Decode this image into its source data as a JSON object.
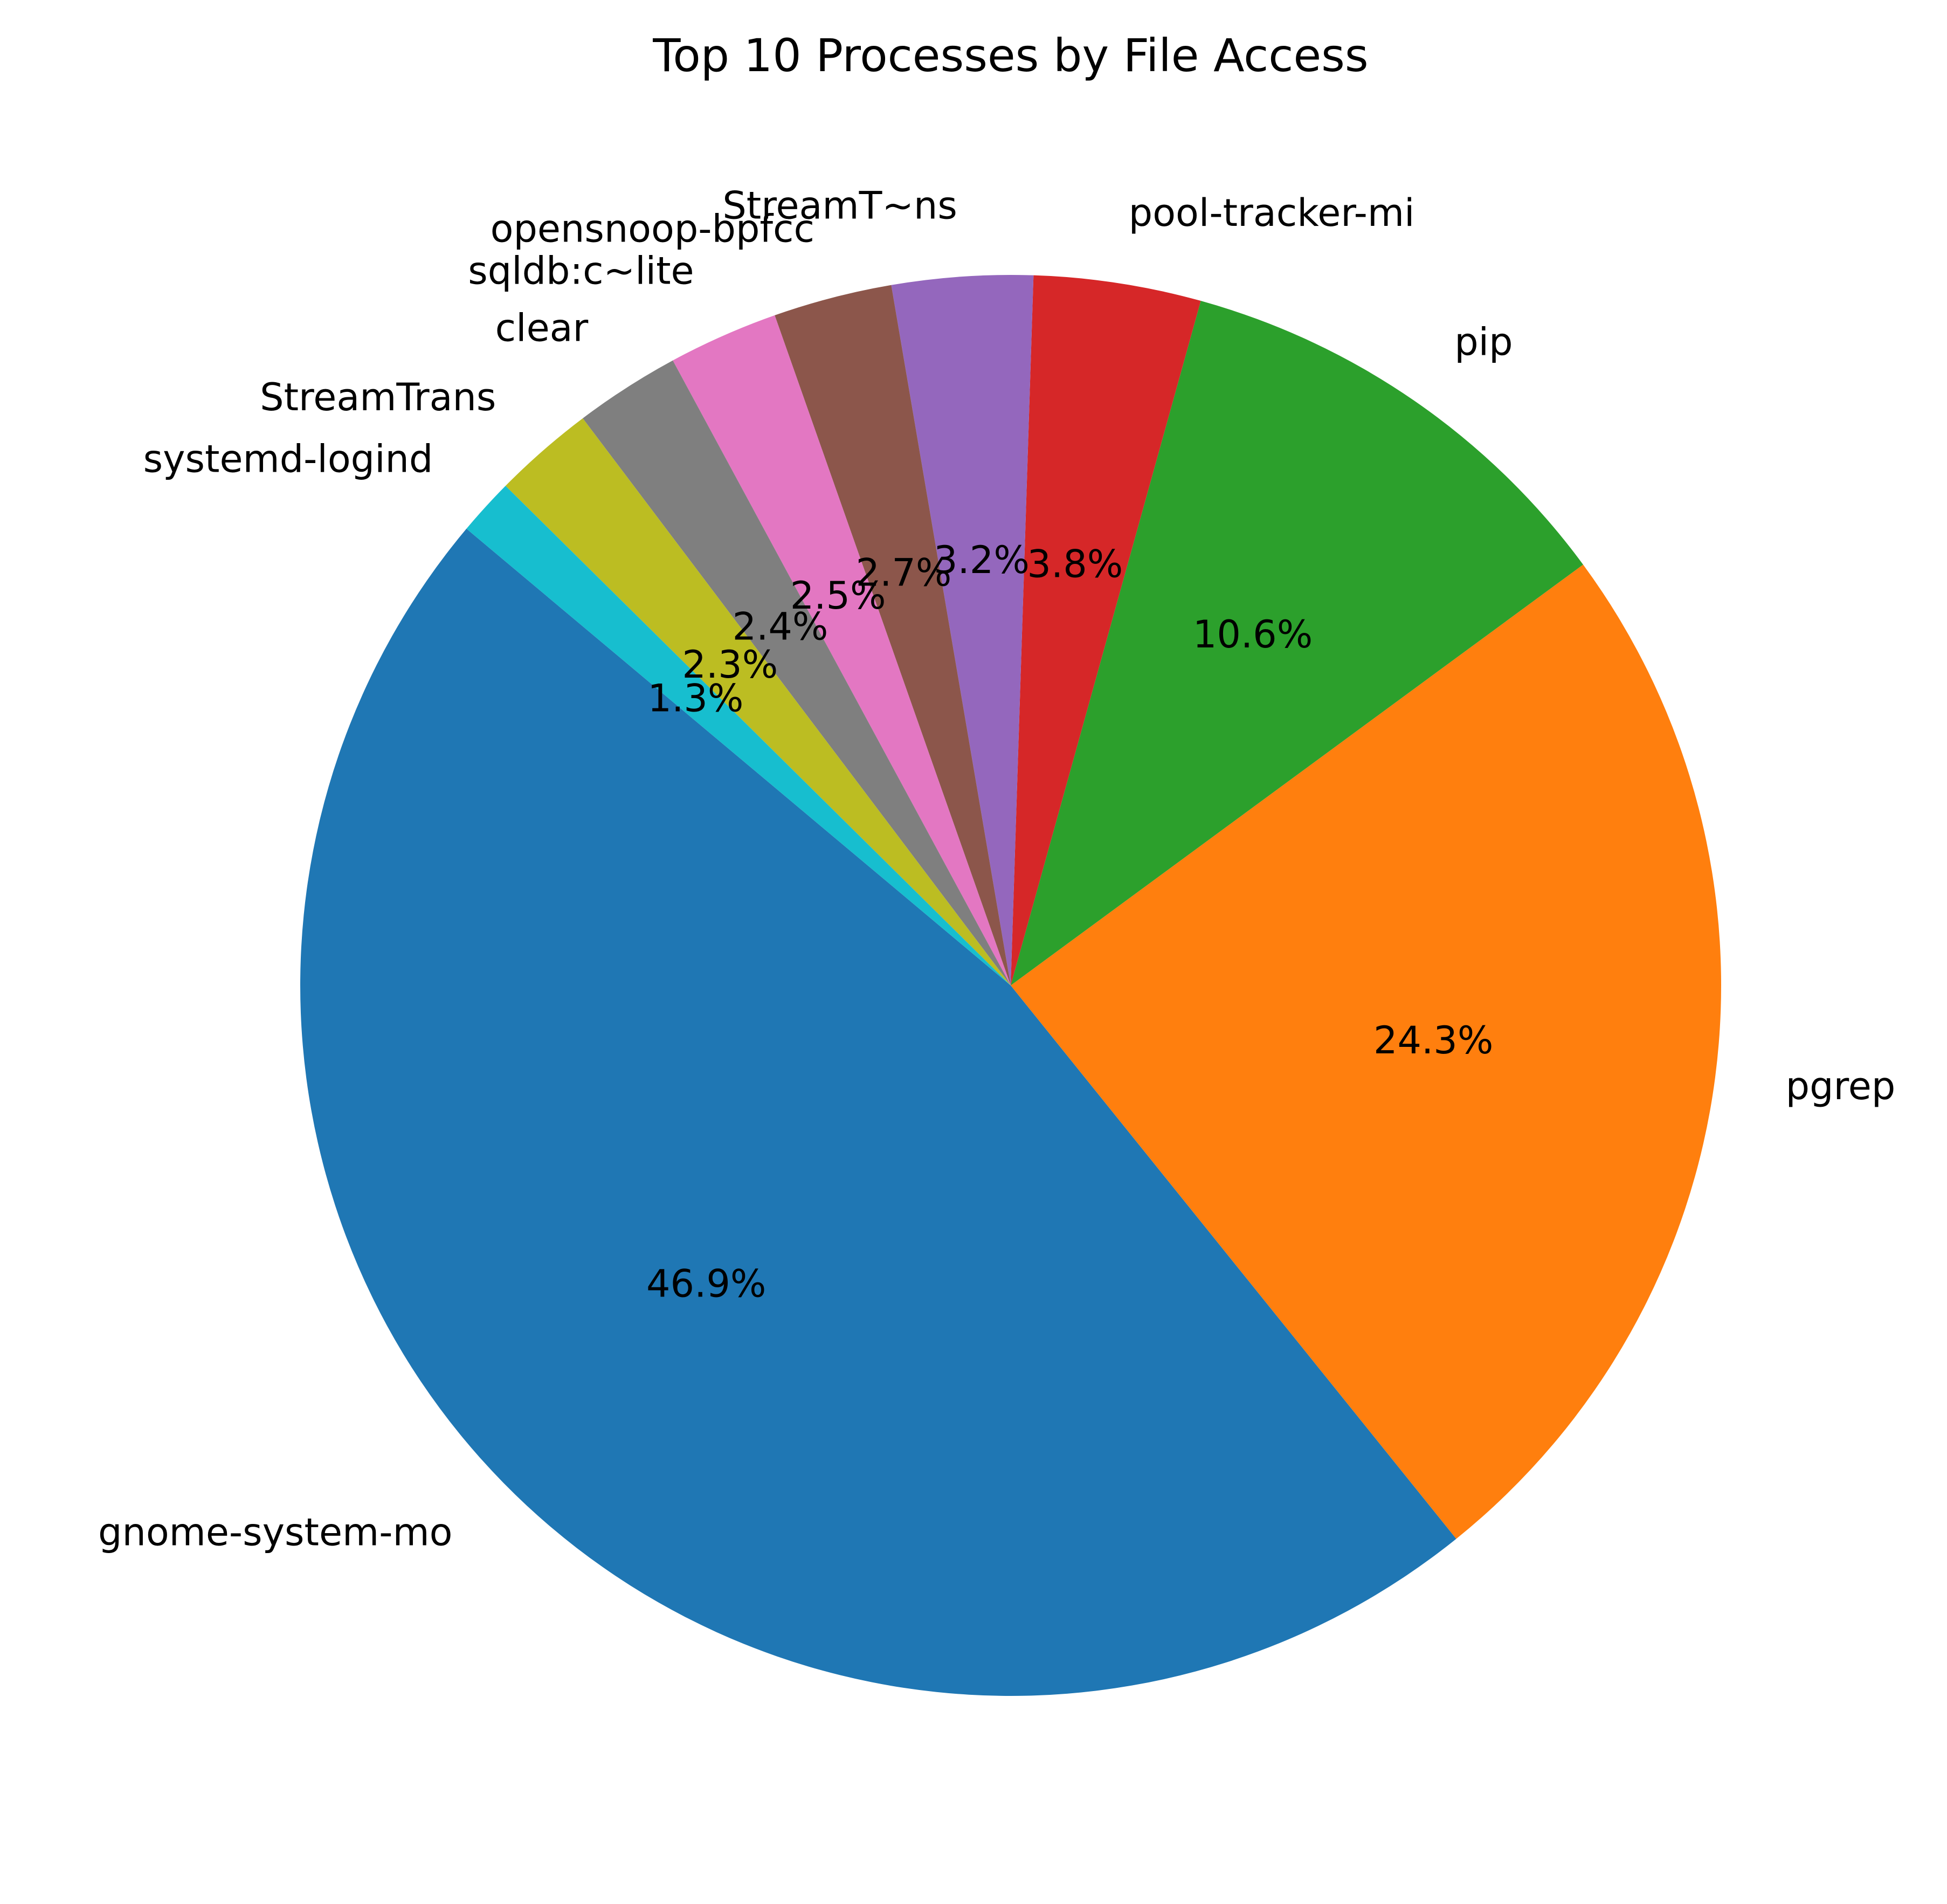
{
  "chart_data": {
    "type": "pie",
    "title": "Top 10 Processes by File Access",
    "slices": [
      {
        "label": "gnome-system-mo",
        "value": 46.9,
        "pct_label": "46.9%",
        "color": "#1f77b4"
      },
      {
        "label": "pgrep",
        "value": 24.3,
        "pct_label": "24.3%",
        "color": "#ff7f0e"
      },
      {
        "label": "pip",
        "value": 10.6,
        "pct_label": "10.6%",
        "color": "#2ca02c"
      },
      {
        "label": "pool-tracker-mi",
        "value": 3.8,
        "pct_label": "3.8%",
        "color": "#d62728"
      },
      {
        "label": "StreamT~ns",
        "value": 3.2,
        "pct_label": "3.2%",
        "color": "#9467bd"
      },
      {
        "label": "opensnoop-bpfcc",
        "value": 2.7,
        "pct_label": "2.7%",
        "color": "#8c564b"
      },
      {
        "label": "sqldb:c~lite",
        "value": 2.5,
        "pct_label": "2.5%",
        "color": "#e377c2"
      },
      {
        "label": "clear",
        "value": 2.4,
        "pct_label": "2.4%",
        "color": "#7f7f7f"
      },
      {
        "label": "StreamTrans",
        "value": 2.3,
        "pct_label": "2.3%",
        "color": "#bcbd22"
      },
      {
        "label": "systemd-logind",
        "value": 1.3,
        "pct_label": "1.3%",
        "color": "#17becf"
      }
    ],
    "start_angle_deg": 140,
    "direction": "counterclockwise",
    "legend": "none"
  }
}
